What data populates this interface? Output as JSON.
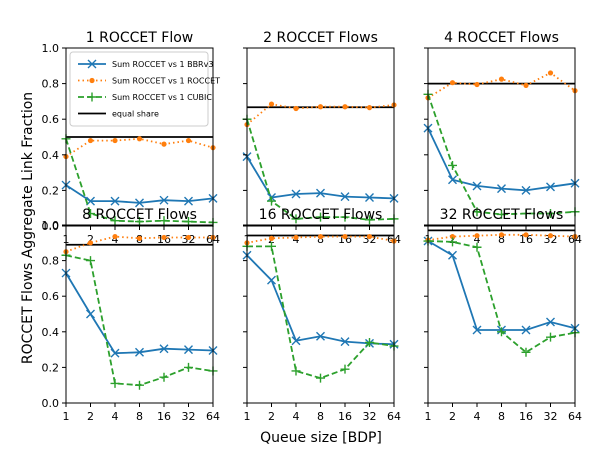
{
  "figure": {
    "ylabel": "ROCCET Flows Aggregate Link Fraction",
    "xlabel": "Queue size [BDP]"
  },
  "legend": {
    "placement": "upper-left of first panel",
    "entries": [
      {
        "label": "Sum ROCCET vs 1 BBRv3",
        "color": "#1f77b4",
        "line": "solid",
        "marker": "x"
      },
      {
        "label": "Sum ROCCET vs 1 ROCCET",
        "color": "#ff7f0e",
        "line": "dotted",
        "marker": "dot"
      },
      {
        "label": "Sum ROCCET vs 1 CUBIC",
        "color": "#2ca02c",
        "line": "dashed",
        "marker": "plus"
      },
      {
        "label": "equal share",
        "color": "#000000",
        "line": "solid",
        "marker": "none"
      }
    ]
  },
  "chart_data": [
    {
      "type": "line",
      "title": "1 ROCCET Flow",
      "x": [
        "1",
        "2",
        "4",
        "8",
        "16",
        "32",
        "64"
      ],
      "ylim": [
        0,
        1.0
      ],
      "yticks": [
        "0.0",
        "0.2",
        "0.4",
        "0.6",
        "0.8",
        "1.0"
      ],
      "equal_share": 0.5,
      "series": [
        {
          "name": "Sum ROCCET vs 1 BBRv3",
          "values": [
            0.23,
            0.14,
            0.14,
            0.13,
            0.145,
            0.14,
            0.155
          ]
        },
        {
          "name": "Sum ROCCET vs 1 ROCCET",
          "values": [
            0.39,
            0.48,
            0.48,
            0.49,
            0.46,
            0.48,
            0.44
          ]
        },
        {
          "name": "Sum ROCCET vs 1 CUBIC",
          "values": [
            0.49,
            0.07,
            0.03,
            0.025,
            0.03,
            0.025,
            0.02
          ]
        }
      ]
    },
    {
      "type": "line",
      "title": "2 ROCCET Flows",
      "x": [
        "1",
        "2",
        "4",
        "8",
        "16",
        "32",
        "64"
      ],
      "ylim": [
        0,
        1.0
      ],
      "equal_share": 0.667,
      "series": [
        {
          "name": "Sum ROCCET vs 1 BBRv3",
          "values": [
            0.39,
            0.16,
            0.18,
            0.185,
            0.165,
            0.16,
            0.155
          ]
        },
        {
          "name": "Sum ROCCET vs 1 ROCCET",
          "values": [
            0.57,
            0.685,
            0.66,
            0.67,
            0.67,
            0.665,
            0.68
          ]
        },
        {
          "name": "Sum ROCCET vs 1 CUBIC",
          "values": [
            0.6,
            0.14,
            0.04,
            0.05,
            0.05,
            0.035,
            0.04
          ]
        }
      ]
    },
    {
      "type": "line",
      "title": "4 ROCCET Flows",
      "x": [
        "1",
        "2",
        "4",
        "8",
        "16",
        "32",
        "64"
      ],
      "ylim": [
        0,
        1.0
      ],
      "equal_share": 0.8,
      "series": [
        {
          "name": "Sum ROCCET vs 1 BBRv3",
          "values": [
            0.55,
            0.26,
            0.225,
            0.21,
            0.2,
            0.22,
            0.24
          ]
        },
        {
          "name": "Sum ROCCET vs 1 ROCCET",
          "values": [
            0.72,
            0.805,
            0.795,
            0.825,
            0.79,
            0.86,
            0.76
          ]
        },
        {
          "name": "Sum ROCCET vs 1 CUBIC",
          "values": [
            0.74,
            0.34,
            0.08,
            0.065,
            0.07,
            0.07,
            0.08
          ]
        }
      ]
    },
    {
      "type": "line",
      "title": "8 ROCCET Flows",
      "x": [
        "1",
        "2",
        "4",
        "8",
        "16",
        "32",
        "64"
      ],
      "ylim": [
        0,
        1.0
      ],
      "equal_share": 0.889,
      "series": [
        {
          "name": "Sum ROCCET vs 1 BBRv3",
          "values": [
            0.73,
            0.5,
            0.28,
            0.285,
            0.305,
            0.3,
            0.295
          ]
        },
        {
          "name": "Sum ROCCET vs 1 ROCCET",
          "values": [
            0.85,
            0.9,
            0.935,
            0.925,
            0.93,
            0.93,
            0.93
          ]
        },
        {
          "name": "Sum ROCCET vs 1 CUBIC",
          "values": [
            0.83,
            0.8,
            0.11,
            0.1,
            0.145,
            0.2,
            0.18
          ]
        }
      ]
    },
    {
      "type": "line",
      "title": "16 ROCCET Flows",
      "x": [
        "1",
        "2",
        "4",
        "8",
        "16",
        "32",
        "64"
      ],
      "ylim": [
        0,
        1.0
      ],
      "equal_share": 0.941,
      "series": [
        {
          "name": "Sum ROCCET vs 1 BBRv3",
          "values": [
            0.83,
            0.69,
            0.35,
            0.375,
            0.345,
            0.335,
            0.33
          ]
        },
        {
          "name": "Sum ROCCET vs 1 ROCCET",
          "values": [
            0.9,
            0.925,
            0.93,
            0.935,
            0.935,
            0.935,
            0.91
          ]
        },
        {
          "name": "Sum ROCCET vs 1 CUBIC",
          "values": [
            0.88,
            0.88,
            0.18,
            0.14,
            0.19,
            0.34,
            0.32
          ]
        }
      ]
    },
    {
      "type": "line",
      "title": "32 ROCCET Flows",
      "x": [
        "1",
        "2",
        "4",
        "8",
        "16",
        "32",
        "64"
      ],
      "ylim": [
        0,
        1.0
      ],
      "equal_share": 0.97,
      "series": [
        {
          "name": "Sum ROCCET vs 1 BBRv3",
          "values": [
            0.91,
            0.83,
            0.41,
            0.41,
            0.41,
            0.455,
            0.42
          ]
        },
        {
          "name": "Sum ROCCET vs 1 ROCCET",
          "values": [
            0.915,
            0.935,
            0.94,
            0.945,
            0.945,
            0.94,
            0.935
          ]
        },
        {
          "name": "Sum ROCCET vs 1 CUBIC",
          "values": [
            0.91,
            0.905,
            0.875,
            0.4,
            0.285,
            0.37,
            0.395
          ]
        }
      ]
    }
  ]
}
